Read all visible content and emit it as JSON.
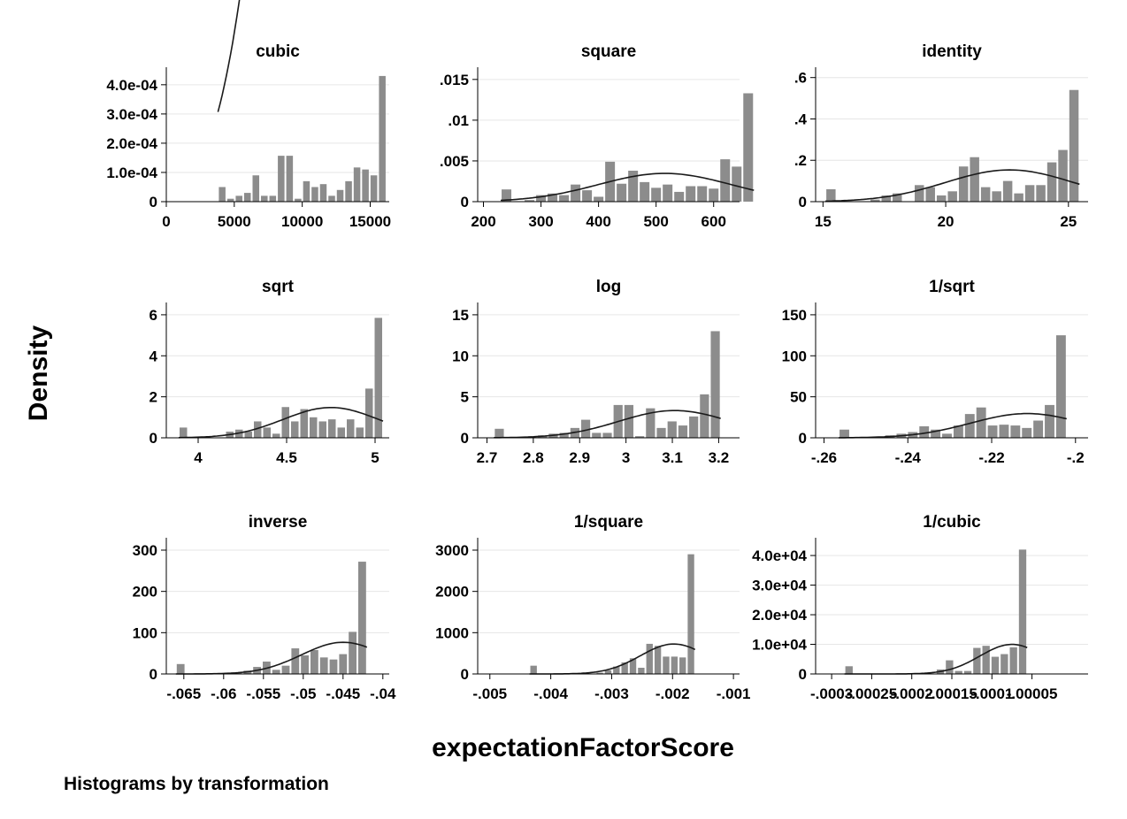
{
  "y_axis_label": "Density",
  "x_axis_label": "expectationFactorScore",
  "note": "Histograms by transformation",
  "colors": {
    "bar": "#8c8c8c",
    "curve": "#1a1a1a",
    "grid": "#e6e6e6",
    "axis": "#000000"
  },
  "chart_data": [
    {
      "type": "bar",
      "title": "cubic",
      "xlim": [
        0,
        16400
      ],
      "ylim": [
        0,
        0.00046
      ],
      "xticks": [
        0,
        5000,
        10000,
        15000
      ],
      "xtick_labels": [
        "0",
        "5000",
        "10000",
        "15000"
      ],
      "yticks": [
        0,
        0.0001,
        0.0002,
        0.0003,
        0.0004
      ],
      "ytick_labels": [
        "0",
        "1.0e-04",
        "2.0e-04",
        "3.0e-04",
        "4.0e-04"
      ],
      "bin_start": 3800,
      "bin_width": 620,
      "values": [
        5e-05,
        1e-05,
        2e-05,
        3e-05,
        9e-05,
        2e-05,
        2e-05,
        0.000157,
        0.000157,
        1e-05,
        7e-05,
        5e-05,
        6e-05,
        2e-05,
        4e-05,
        7e-05,
        0.000117,
        0.00011,
        9e-05,
        0.00043
      ],
      "normal": {
        "mean": 12000,
        "sd": 3800,
        "n": 30
      }
    },
    {
      "type": "bar",
      "title": "square",
      "xlim": [
        190,
        645
      ],
      "ylim": [
        0,
        0.0165
      ],
      "xticks": [
        200,
        300,
        400,
        500,
        600
      ],
      "xtick_labels": [
        "200",
        "300",
        "400",
        "500",
        "600"
      ],
      "yticks": [
        0,
        0.005,
        0.01,
        0.015
      ],
      "ytick_labels": [
        "0",
        ".005",
        ".01",
        ".015"
      ],
      "bin_start": 230,
      "bin_width": 20,
      "values": [
        0.0015,
        0,
        0.0002,
        0.0008,
        0.001,
        0.0008,
        0.0021,
        0.0014,
        0.0006,
        0.0049,
        0.0022,
        0.0038,
        0.0024,
        0.0017,
        0.0021,
        0.0012,
        0.0019,
        0.0019,
        0.0016,
        0.0052,
        0.0043,
        0.0133
      ],
      "normal": {
        "mean": 515,
        "sd": 115,
        "n": 1
      }
    },
    {
      "type": "bar",
      "title": "identity",
      "xlim": [
        14.7,
        25.8
      ],
      "ylim": [
        0,
        0.65
      ],
      "xticks": [
        15,
        20,
        25
      ],
      "xtick_labels": [
        "15",
        "20",
        "25"
      ],
      "yticks": [
        0,
        0.2,
        0.4,
        0.6
      ],
      "ytick_labels": [
        "0",
        ".2",
        ".4",
        ".6"
      ],
      "bin_start": 15.1,
      "bin_width": 0.45,
      "values": [
        0.06,
        0,
        0,
        0,
        0.01,
        0.03,
        0.04,
        0,
        0.08,
        0.07,
        0.03,
        0.05,
        0.17,
        0.215,
        0.07,
        0.05,
        0.1,
        0.04,
        0.08,
        0.08,
        0.19,
        0.25,
        0.54
      ],
      "normal": {
        "mean": 22.6,
        "sd": 2.6,
        "n": 1
      }
    },
    {
      "type": "bar",
      "title": "sqrt",
      "xlim": [
        3.82,
        5.08
      ],
      "ylim": [
        0,
        6.6
      ],
      "xticks": [
        4,
        4.5,
        5
      ],
      "xtick_labels": [
        "4",
        "4.5",
        "5"
      ],
      "yticks": [
        0,
        2,
        4,
        6
      ],
      "ytick_labels": [
        "0",
        "2",
        "4",
        "6"
      ],
      "bin_start": 3.89,
      "bin_width": 0.0525,
      "values": [
        0.5,
        0,
        0,
        0,
        0,
        0.3,
        0.4,
        0.3,
        0.8,
        0.5,
        0.2,
        1.5,
        0.8,
        1.4,
        1,
        0.8,
        0.9,
        0.5,
        0.9,
        0.5,
        2.4,
        5.85
      ],
      "normal": {
        "mean": 4.75,
        "sd": 0.27,
        "n": 1
      }
    },
    {
      "type": "bar",
      "title": "log",
      "xlim": [
        2.68,
        3.245
      ],
      "ylim": [
        0,
        16.5
      ],
      "xticks": [
        2.7,
        2.8,
        2.9,
        3,
        3.1,
        3.2
      ],
      "xtick_labels": [
        "2.7",
        "2.8",
        "2.9",
        "3",
        "3.1",
        "3.2"
      ],
      "yticks": [
        0,
        5,
        10,
        15
      ],
      "ytick_labels": [
        "0",
        "5",
        "10",
        "15"
      ],
      "bin_start": 2.715,
      "bin_width": 0.0233,
      "values": [
        1.1,
        0,
        0,
        0,
        0.3,
        0.5,
        0.6,
        1.2,
        2.2,
        0.6,
        0.6,
        4,
        4,
        0.2,
        3.6,
        1.2,
        2,
        1.5,
        2.6,
        5.3,
        13
      ],
      "normal": {
        "mean": 3.105,
        "sd": 0.12,
        "n": 1
      }
    },
    {
      "type": "bar",
      "title": "1/sqrt",
      "xlim": [
        -0.262,
        -0.197
      ],
      "ylim": [
        0,
        165
      ],
      "xticks": [
        -0.26,
        -0.24,
        -0.22,
        -0.2
      ],
      "xtick_labels": [
        "-.26",
        "-.24",
        "-.22",
        "-.2"
      ],
      "yticks": [
        0,
        50,
        100,
        150
      ],
      "ytick_labels": [
        "0",
        "50",
        "100",
        "150"
      ],
      "bin_start": -0.2565,
      "bin_width": 0.00272,
      "values": [
        10,
        0,
        0,
        0,
        3,
        5,
        7,
        14,
        10,
        5,
        15,
        29,
        37,
        15,
        16,
        15,
        12,
        21,
        40,
        125
      ],
      "normal": {
        "mean": -0.2115,
        "sd": 0.0135,
        "n": 1
      }
    },
    {
      "type": "bar",
      "title": "inverse",
      "xlim": [
        -0.0672,
        -0.0392
      ],
      "ylim": [
        0,
        330
      ],
      "xticks": [
        -0.065,
        -0.06,
        -0.055,
        -0.05,
        -0.045,
        -0.04
      ],
      "xtick_labels": [
        "-.065",
        "-.06",
        "-.055",
        "-.05",
        "-.045",
        "-.04"
      ],
      "yticks": [
        0,
        100,
        200,
        300
      ],
      "ytick_labels": [
        "0",
        "100",
        "200",
        "300"
      ],
      "bin_start": -0.066,
      "bin_width": 0.0012,
      "values": [
        24,
        0,
        0,
        0,
        0,
        0,
        4,
        8,
        17,
        30,
        10,
        20,
        62,
        45,
        58,
        40,
        35,
        48,
        102,
        272
      ],
      "normal": {
        "mean": -0.045,
        "sd": 0.0052,
        "n": 1
      }
    },
    {
      "type": "bar",
      "title": "1/square",
      "xlim": [
        -0.0052,
        -0.0009
      ],
      "ylim": [
        0,
        3300
      ],
      "xticks": [
        -0.005,
        -0.004,
        -0.003,
        -0.002,
        -0.001
      ],
      "xtick_labels": [
        "-.005",
        "-.004",
        "-.003",
        "-.002",
        "-.001"
      ],
      "yticks": [
        0,
        1000,
        2000,
        3000
      ],
      "ytick_labels": [
        "0",
        "1000",
        "2000",
        "3000"
      ],
      "bin_start": -0.00435,
      "bin_width": 0.000136,
      "values": [
        200,
        0,
        0,
        0,
        0,
        0,
        0,
        0,
        30,
        90,
        180,
        280,
        380,
        150,
        730,
        680,
        420,
        420,
        400,
        2900
      ],
      "normal": {
        "mean": -0.00198,
        "sd": 0.00055,
        "n": 1
      }
    },
    {
      "type": "bar",
      "title": "1/cubic",
      "xlim": [
        -0.00032,
        2e-05
      ],
      "ylim": [
        0,
        46000
      ],
      "xticks": [
        -0.0003,
        -0.00025,
        -0.0002,
        -0.00015,
        -0.0001,
        -5e-05
      ],
      "xtick_labels": [
        "-.0003",
        "-.00025",
        "-.0002",
        "-.00015",
        "-.0001",
        "-.00005"
      ],
      "yticks": [
        0,
        10000,
        20000,
        30000,
        40000
      ],
      "ytick_labels": [
        "0",
        "1.0e+04",
        "2.0e+04",
        "3.0e+04",
        "4.0e+04"
      ],
      "bin_start": -0.000284,
      "bin_width": 1.14e-05,
      "values": [
        2600,
        0,
        0,
        0,
        0,
        0,
        0,
        0,
        0,
        0,
        1500,
        4600,
        1000,
        1000,
        8800,
        9500,
        5800,
        6700,
        9000,
        42000
      ],
      "normal": {
        "mean": -7.5e-05,
        "sd": 4e-05,
        "n": 1
      }
    }
  ]
}
